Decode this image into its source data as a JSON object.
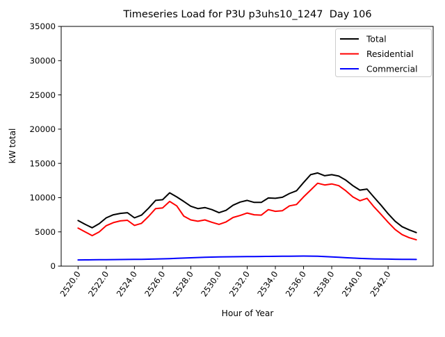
{
  "chart_data": {
    "type": "line",
    "title": "Timeseries Load for P3U p3uhs10_1247  Day 106",
    "xlabel": "Hour of Year",
    "ylabel": "kW total",
    "xlim": [
      2518.8,
      2545.2
    ],
    "ylim": [
      0,
      35000
    ],
    "grid": false,
    "legend_position": "upper right",
    "xticks": {
      "values": [
        2520,
        2522,
        2524,
        2526,
        2528,
        2530,
        2532,
        2534,
        2536,
        2538,
        2540,
        2542
      ],
      "labels": [
        "2520.0",
        "2522.0",
        "2524.0",
        "2526.0",
        "2528.0",
        "2530.0",
        "2532.0",
        "2534.0",
        "2536.0",
        "2538.0",
        "2540.0",
        "2542.0"
      ]
    },
    "yticks": {
      "values": [
        0,
        5000,
        10000,
        15000,
        20000,
        25000,
        30000,
        35000
      ],
      "labels": [
        "0",
        "5000",
        "10000",
        "15000",
        "20000",
        "25000",
        "30000",
        "35000"
      ]
    },
    "x": [
      2520.0,
      2520.5,
      2521.0,
      2521.5,
      2522.0,
      2522.5,
      2523.0,
      2523.5,
      2524.0,
      2524.5,
      2525.0,
      2525.5,
      2526.0,
      2526.5,
      2527.0,
      2527.5,
      2528.0,
      2528.5,
      2529.0,
      2529.5,
      2530.0,
      2530.5,
      2531.0,
      2531.5,
      2532.0,
      2532.5,
      2533.0,
      2533.5,
      2534.0,
      2534.5,
      2535.0,
      2535.5,
      2536.0,
      2536.5,
      2537.0,
      2537.5,
      2538.0,
      2538.5,
      2539.0,
      2539.5,
      2540.0,
      2540.5,
      2541.0,
      2541.5,
      2542.0,
      2542.5,
      2543.0,
      2543.5,
      2544.0
    ],
    "series": [
      {
        "name": "Total",
        "color": "#000000",
        "values": [
          6650,
          6100,
          5600,
          6200,
          7050,
          7500,
          7700,
          7800,
          7050,
          7450,
          8450,
          9600,
          9700,
          10700,
          10100,
          9450,
          8750,
          8400,
          8550,
          8250,
          7800,
          8150,
          8900,
          9350,
          9600,
          9300,
          9300,
          9950,
          9900,
          10050,
          10600,
          11000,
          12200,
          13350,
          13600,
          13200,
          13350,
          13150,
          12550,
          11750,
          11100,
          11250,
          10050,
          8900,
          7650,
          6550,
          5750,
          5300,
          4900
        ]
      },
      {
        "name": "Residential",
        "color": "#ff0000",
        "values": [
          5550,
          5000,
          4450,
          5000,
          5900,
          6350,
          6600,
          6700,
          5950,
          6250,
          7250,
          8400,
          8500,
          9450,
          8800,
          7300,
          6750,
          6550,
          6750,
          6400,
          6100,
          6450,
          7100,
          7400,
          7750,
          7500,
          7450,
          8250,
          8000,
          8100,
          8800,
          9000,
          10100,
          11100,
          12100,
          11850,
          12000,
          11750,
          11000,
          10100,
          9550,
          9900,
          8650,
          7550,
          6400,
          5350,
          4600,
          4150,
          3850
        ]
      },
      {
        "name": "Commercial",
        "color": "#0000ff",
        "values": [
          900,
          910,
          920,
          930,
          940,
          950,
          960,
          970,
          980,
          990,
          1010,
          1040,
          1070,
          1100,
          1140,
          1180,
          1220,
          1260,
          1290,
          1320,
          1340,
          1360,
          1370,
          1380,
          1390,
          1400,
          1410,
          1420,
          1430,
          1440,
          1450,
          1460,
          1470,
          1460,
          1440,
          1400,
          1350,
          1290,
          1230,
          1180,
          1130,
          1090,
          1060,
          1040,
          1020,
          1000,
          990,
          980,
          970
        ]
      }
    ]
  }
}
